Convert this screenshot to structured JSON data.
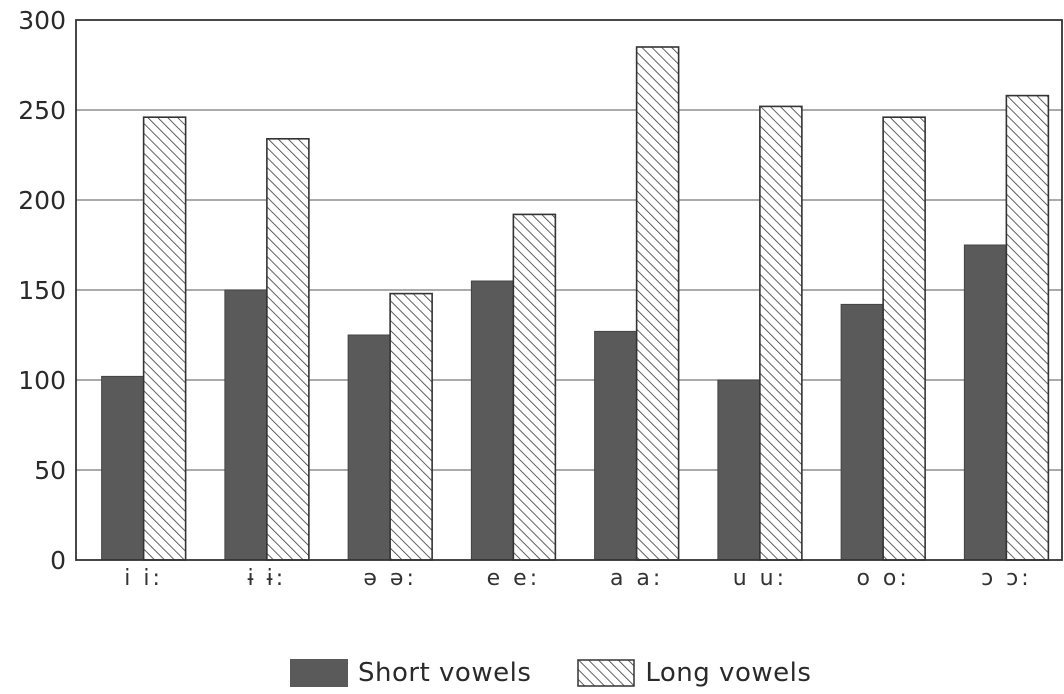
{
  "chart_data": {
    "type": "bar",
    "categories": [
      "i i:",
      "ɨ ɨ:",
      "ə ə:",
      "e e:",
      "a a:",
      "u u:",
      "o o:",
      "ɔ ɔ:"
    ],
    "series": [
      {
        "name": "Short vowels",
        "values": [
          102,
          150,
          125,
          155,
          127,
          100,
          142,
          175
        ],
        "fill": "solid"
      },
      {
        "name": "Long vowels",
        "values": [
          246,
          234,
          148,
          192,
          285,
          252,
          246,
          258
        ],
        "fill": "hatched"
      }
    ],
    "ylim": [
      0,
      300
    ],
    "yticks": [
      "0",
      "50",
      "100",
      "150",
      "200",
      "250",
      "300"
    ],
    "grid": true,
    "legend_position": "bottom",
    "colors": {
      "short": "#5a5a5a",
      "hatch": "#3a3a3a",
      "axis": "#333333",
      "grid": "#777777"
    }
  },
  "legend": {
    "short_label": "Short vowels",
    "long_label": "Long vowels"
  }
}
